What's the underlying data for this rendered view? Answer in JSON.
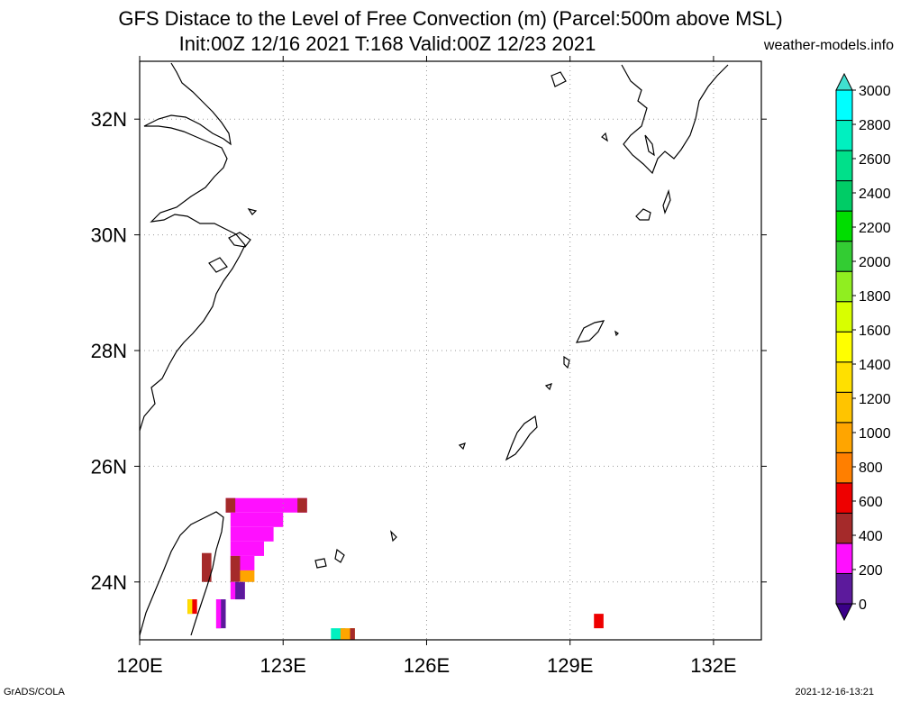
{
  "title": {
    "line1": "GFS Distace to the Level of Free Convection (m) (Parcel:500m above MSL)",
    "line2": "Init:00Z 12/16 2021 T:168 Valid:00Z 12/23 2021",
    "site": "weather-models.info"
  },
  "footer": {
    "left": "GrADS/COLA",
    "right": "2021-12-16-13:21"
  },
  "axes": {
    "lon_ticks": [
      120,
      123,
      126,
      129,
      132
    ],
    "lon_labels": [
      "120E",
      "123E",
      "126E",
      "129E",
      "132E"
    ],
    "lat_ticks": [
      24,
      26,
      28,
      30,
      32
    ],
    "lat_labels": [
      "24N",
      "26N",
      "28N",
      "30N",
      "32N"
    ],
    "lon_range": [
      120,
      133
    ],
    "lat_range": [
      23,
      33
    ],
    "grid": true
  },
  "colorbar": {
    "levels": [
      0,
      200,
      400,
      600,
      800,
      1000,
      1200,
      1400,
      1600,
      1800,
      2000,
      2200,
      2400,
      2600,
      2800,
      3000
    ],
    "labels": [
      "0",
      "200",
      "400",
      "600",
      "800",
      "1000",
      "1200",
      "1400",
      "1600",
      "1800",
      "2000",
      "2200",
      "2400",
      "2600",
      "2800",
      "3000"
    ],
    "colors": [
      "#3a0088",
      "#5c1a9c",
      "#ff10ff",
      "#a52a2a",
      "#ee0000",
      "#ff7f00",
      "#ffa500",
      "#ffc400",
      "#ffe000",
      "#ffff00",
      "#d8ff00",
      "#90ee20",
      "#33cc33",
      "#00dd00",
      "#00cc66",
      "#00e08a",
      "#00f0c0",
      "#00ffff",
      "#40e0d0"
    ]
  },
  "chart_data": {
    "type": "heatmap",
    "variable": "Distance to the Level of Free Convection (m)",
    "cells": [
      {
        "lon_min": 121.8,
        "lon_max": 123.5,
        "lat_min": 25.2,
        "lat_max": 25.45,
        "value": 200
      },
      {
        "lon_min": 123.3,
        "lon_max": 123.5,
        "lat_min": 25.2,
        "lat_max": 25.45,
        "value": 400
      },
      {
        "lon_min": 121.8,
        "lon_max": 122.0,
        "lat_min": 25.2,
        "lat_max": 25.45,
        "value": 400
      },
      {
        "lon_min": 121.9,
        "lon_max": 123.0,
        "lat_min": 24.95,
        "lat_max": 25.2,
        "value": 200
      },
      {
        "lon_min": 121.9,
        "lon_max": 122.8,
        "lat_min": 24.7,
        "lat_max": 24.95,
        "value": 200
      },
      {
        "lon_min": 121.9,
        "lon_max": 122.6,
        "lat_min": 24.45,
        "lat_max": 24.7,
        "value": 200
      },
      {
        "lon_min": 121.9,
        "lon_max": 122.4,
        "lat_min": 24.2,
        "lat_max": 24.45,
        "value": 200
      },
      {
        "lon_min": 121.9,
        "lon_max": 122.1,
        "lat_min": 24.0,
        "lat_max": 24.45,
        "value": 400
      },
      {
        "lon_min": 122.1,
        "lon_max": 122.4,
        "lat_min": 24.0,
        "lat_max": 24.2,
        "value": 1000
      },
      {
        "lon_min": 121.9,
        "lon_max": 122.2,
        "lat_min": 23.7,
        "lat_max": 24.0,
        "value": 200
      },
      {
        "lon_min": 122.0,
        "lon_max": 122.2,
        "lat_min": 23.7,
        "lat_max": 24.0,
        "value": 0
      },
      {
        "lon_min": 121.3,
        "lon_max": 121.5,
        "lat_min": 24.0,
        "lat_max": 24.5,
        "value": 400
      },
      {
        "lon_min": 121.0,
        "lon_max": 121.2,
        "lat_min": 23.45,
        "lat_max": 23.7,
        "value": 600
      },
      {
        "lon_min": 121.0,
        "lon_max": 121.1,
        "lat_min": 23.45,
        "lat_max": 23.7,
        "value": 1400
      },
      {
        "lon_min": 121.6,
        "lon_max": 121.8,
        "lat_min": 23.2,
        "lat_max": 23.7,
        "value": 0
      },
      {
        "lon_min": 121.6,
        "lon_max": 121.7,
        "lat_min": 23.2,
        "lat_max": 23.7,
        "value": 200
      },
      {
        "lon_min": 124.0,
        "lon_max": 124.3,
        "lat_min": 23.0,
        "lat_max": 23.2,
        "value": 3000
      },
      {
        "lon_min": 124.2,
        "lon_max": 124.5,
        "lat_min": 23.0,
        "lat_max": 23.2,
        "value": 1000
      },
      {
        "lon_min": 124.4,
        "lon_max": 124.5,
        "lat_min": 23.0,
        "lat_max": 23.2,
        "value": 400
      },
      {
        "lon_min": 129.5,
        "lon_max": 129.7,
        "lat_min": 23.2,
        "lat_max": 23.45,
        "value": 600
      }
    ]
  }
}
